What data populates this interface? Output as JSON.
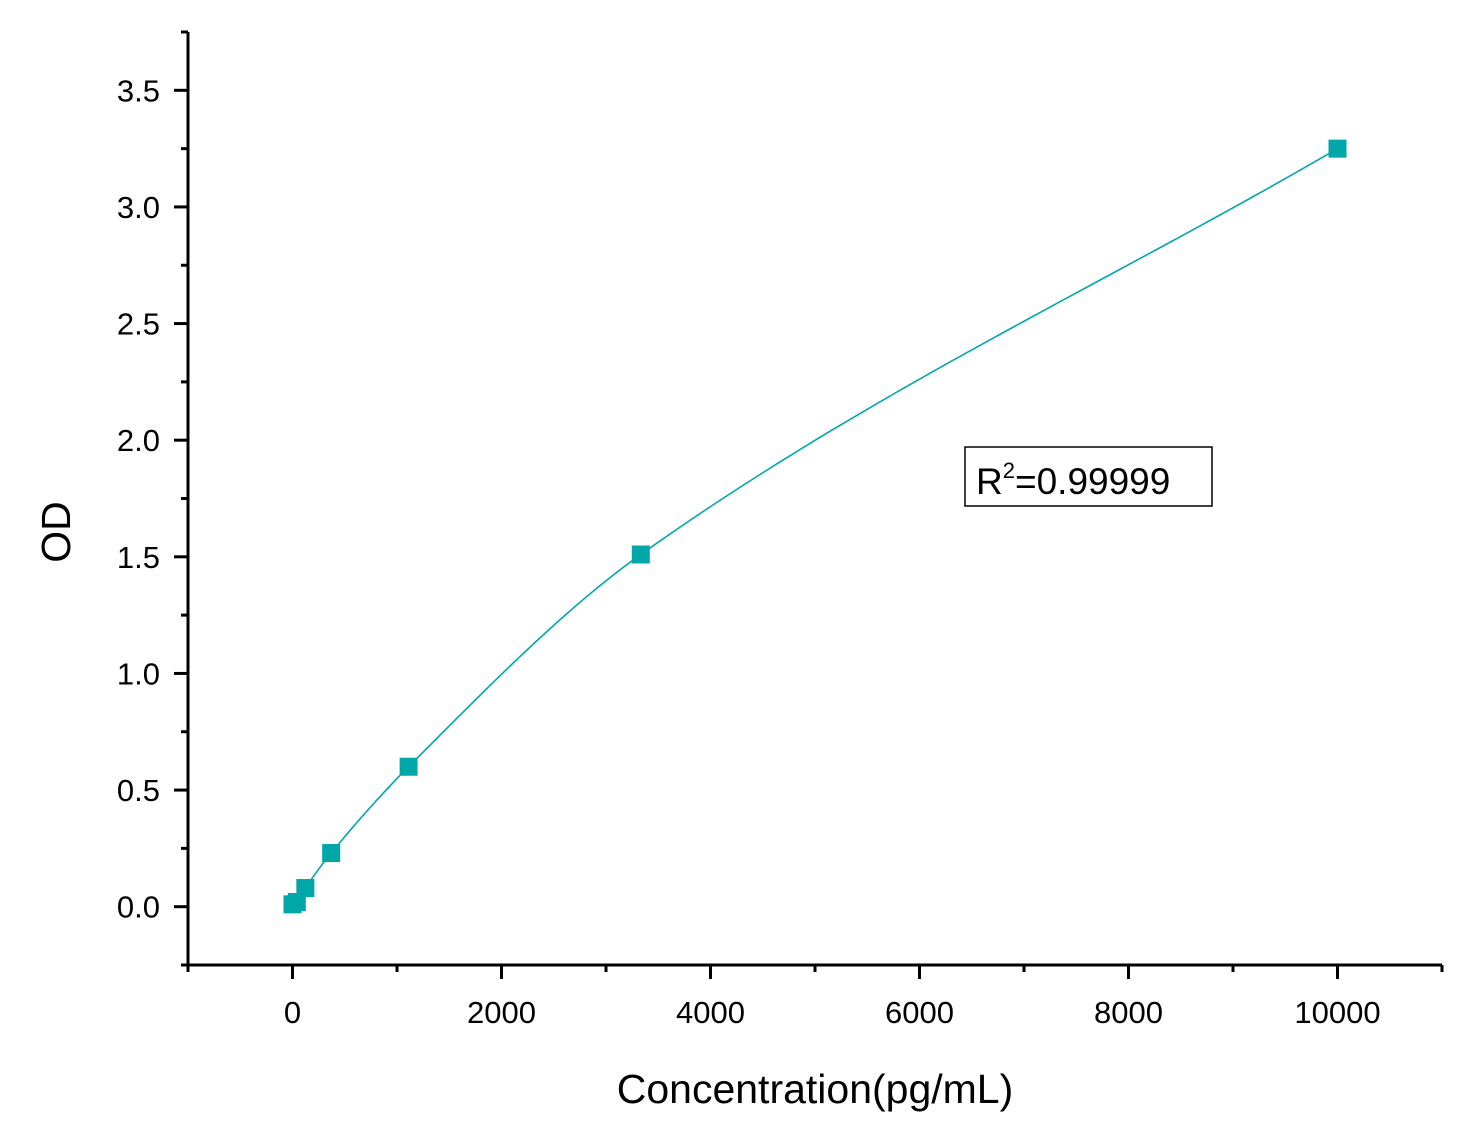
{
  "chart_data": {
    "type": "scatter",
    "title": "",
    "xlabel": "Concentration(pg/mL)",
    "ylabel": "OD",
    "xlim": [
      -1000,
      11000
    ],
    "ylim": [
      -0.25,
      3.75
    ],
    "x_ticks": [
      0,
      2000,
      4000,
      6000,
      8000,
      10000
    ],
    "x_tick_labels": [
      "0",
      "2000",
      "4000",
      "6000",
      "8000",
      "10000"
    ],
    "y_ticks": [
      0.0,
      0.5,
      1.0,
      1.5,
      2.0,
      2.5,
      3.0,
      3.5
    ],
    "y_tick_labels": [
      "0.0",
      "0.5",
      "1.0",
      "1.5",
      "2.0",
      "2.5",
      "3.0",
      "3.5"
    ],
    "grid": false,
    "series": [
      {
        "marker": "square",
        "color": "#00A7A8",
        "points": [
          {
            "x": 0,
            "y": 0.01
          },
          {
            "x": 41,
            "y": 0.02
          },
          {
            "x": 123,
            "y": 0.08
          },
          {
            "x": 370,
            "y": 0.23
          },
          {
            "x": 1111,
            "y": 0.6
          },
          {
            "x": 3333,
            "y": 1.51
          },
          {
            "x": 10000,
            "y": 3.25
          }
        ],
        "fit_line": true
      }
    ],
    "annotation": {
      "text_main": "R",
      "text_sup": "2",
      "text_rest": "=0.99999"
    }
  }
}
